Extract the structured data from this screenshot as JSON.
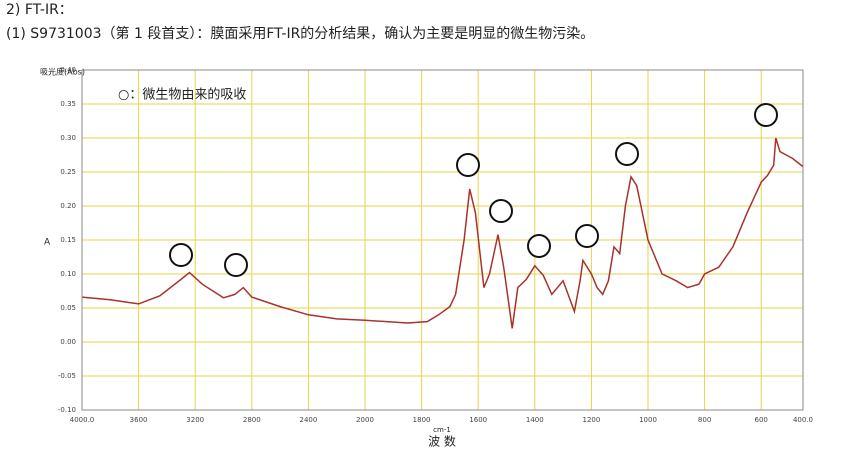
{
  "heading": "2) FT-IR：",
  "subheading": "(1) S9731003（第 1 段首支）：膜面采用FT-IR的分析结果，确认为主要是明显的微生物污染。",
  "chart_data": {
    "type": "line",
    "ylabel": "吸光度(Abs)",
    "ylabel_short": "A",
    "xunit": "cm-1",
    "xlabel": "波 数",
    "annotation": "○：微生物由来的吸收",
    "xlim": [
      4000,
      400
    ],
    "xticks": [
      {
        "value": 4000,
        "label": "4000.0"
      },
      3600,
      3200,
      2800,
      2400,
      2000,
      1800,
      1600,
      1400,
      1200,
      1000,
      800,
      600,
      {
        "value": 400,
        "label": "400.0"
      }
    ],
    "ylim": [
      -0.1,
      0.4
    ],
    "yticks": [
      {
        "value": -0.1,
        "label": "-0.10"
      },
      -0.05,
      {
        "value": 0,
        "label": "0.00"
      },
      0.05,
      {
        "value": 0.1,
        "label": "0.10"
      },
      0.15,
      {
        "value": 0.2,
        "label": "0.20"
      },
      0.25,
      {
        "value": 0.3,
        "label": "0.30"
      },
      0.35,
      {
        "value": 0.4,
        "label": "0.40"
      }
    ],
    "grid": true,
    "series": [
      {
        "color": "#a8322c",
        "x": [
          4000,
          3800,
          3600,
          3450,
          3300,
          3240,
          3150,
          3000,
          2920,
          2860,
          2800,
          2600,
          2400,
          2200,
          2000,
          1850,
          1780,
          1740,
          1700,
          1680,
          1650,
          1630,
          1610,
          1580,
          1560,
          1530,
          1510,
          1480,
          1460,
          1430,
          1400,
          1370,
          1340,
          1300,
          1260,
          1240,
          1230,
          1200,
          1180,
          1160,
          1140,
          1120,
          1100,
          1080,
          1060,
          1040,
          1000,
          950,
          900,
          860,
          820,
          800,
          750,
          700,
          650,
          600,
          570,
          540,
          530,
          510,
          450,
          400
        ],
        "values": [
          0.066,
          0.062,
          0.056,
          0.068,
          0.092,
          0.102,
          0.085,
          0.065,
          0.07,
          0.08,
          0.066,
          0.052,
          0.04,
          0.034,
          0.032,
          0.028,
          0.03,
          0.04,
          0.052,
          0.07,
          0.15,
          0.225,
          0.19,
          0.08,
          0.1,
          0.158,
          0.11,
          0.02,
          0.08,
          0.092,
          0.112,
          0.098,
          0.07,
          0.09,
          0.045,
          0.09,
          0.12,
          0.1,
          0.08,
          0.07,
          0.09,
          0.14,
          0.13,
          0.2,
          0.243,
          0.23,
          0.15,
          0.1,
          0.09,
          0.08,
          0.085,
          0.1,
          0.11,
          0.14,
          0.19,
          0.235,
          0.245,
          0.26,
          0.3,
          0.28,
          0.27,
          0.258
        ]
      }
    ]
  }
}
